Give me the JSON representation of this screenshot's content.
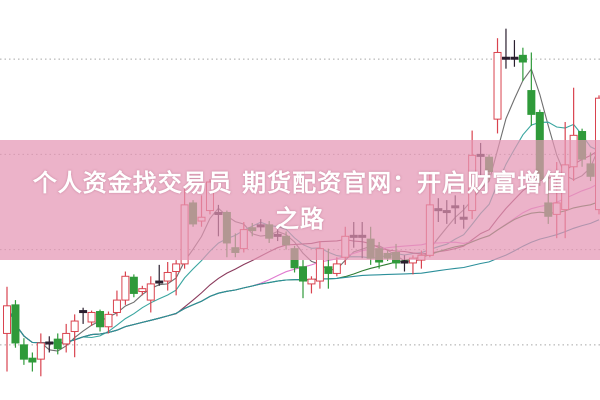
{
  "banner": {
    "title_line1": "个人资金找交易员 期货配资官网：开启财富增值",
    "title_line2": "之路",
    "color": "#e496b4"
  },
  "chart_data": {
    "type": "candlestick",
    "title": "",
    "xlabel": "",
    "ylabel": "",
    "grid": true,
    "ylim": [
      4,
      46
    ],
    "grid_values": [
      10,
      20,
      30,
      40
    ],
    "colors": {
      "up": "#d9434f",
      "down": "#2f9a3a",
      "doji": "#2a1f2f"
    },
    "moving_averages": [
      {
        "period": 5,
        "color": "#6f6f6f"
      },
      {
        "period": 10,
        "color": "#3aa6a0"
      },
      {
        "period": 20,
        "color": "#8a3a5c"
      },
      {
        "period": 30,
        "color": "#e07ad0"
      },
      {
        "period": 40,
        "color": "#2e7d32"
      },
      {
        "period": 60,
        "color": "#2b8f9a"
      }
    ],
    "candles": [
      [
        11.2,
        14.1,
        16.1,
        7.2
      ],
      [
        14.2,
        10.2,
        14.7,
        9.7
      ],
      [
        10.0,
        8.5,
        10.7,
        7.9
      ],
      [
        8.6,
        8.2,
        9.2,
        7.2
      ],
      [
        8.5,
        10.2,
        11.2,
        6.7
      ],
      [
        10.2,
        10.3,
        10.9,
        9.2
      ],
      [
        10.6,
        9.6,
        11.2,
        9.0
      ],
      [
        10.1,
        11.2,
        12.2,
        9.2
      ],
      [
        11.4,
        12.5,
        13.2,
        8.7
      ],
      [
        13.4,
        13.6,
        13.9,
        12.2
      ],
      [
        12.4,
        13.4,
        13.6,
        12.0
      ],
      [
        13.5,
        11.9,
        13.7,
        11.4
      ],
      [
        11.9,
        13.2,
        13.5,
        11.2
      ],
      [
        13.4,
        14.7,
        15.7,
        13.0
      ],
      [
        14.7,
        17.2,
        17.7,
        14.2
      ],
      [
        17.1,
        15.4,
        17.4,
        15.0
      ],
      [
        15.6,
        15.9,
        16.2,
        15.2
      ],
      [
        14.7,
        16.4,
        17.2,
        13.4
      ],
      [
        16.6,
        16.7,
        18.4,
        16.2
      ],
      [
        16.7,
        17.6,
        18.7,
        15.7
      ],
      [
        17.7,
        18.5,
        18.9,
        15.2
      ],
      [
        18.5,
        24.7,
        26.5,
        18.0
      ],
      [
        24.9,
        22.7,
        25.2,
        22.4
      ],
      [
        23.0,
        23.4,
        25.7,
        22.4
      ],
      [
        24.1,
        27.1,
        27.4,
        23.7
      ],
      [
        23.9,
        23.8,
        24.7,
        21.4
      ],
      [
        23.9,
        20.7,
        24.1,
        19.2
      ],
      [
        20.2,
        19.7,
        21.7,
        19.2
      ],
      [
        20.1,
        22.1,
        22.9,
        19.7
      ],
      [
        22.3,
        22.0,
        22.8,
        21.4
      ],
      [
        22.5,
        22.6,
        23.2,
        21.9
      ],
      [
        22.6,
        21.2,
        23.0,
        20.7
      ],
      [
        21.5,
        21.6,
        22.2,
        20.9
      ],
      [
        21.4,
        20.5,
        21.9,
        20.0
      ],
      [
        20.1,
        18.1,
        20.4,
        17.6
      ],
      [
        18.2,
        16.7,
        18.9,
        14.9
      ],
      [
        16.4,
        16.9,
        17.2,
        15.4
      ],
      [
        16.7,
        20.1,
        20.9,
        15.9
      ],
      [
        18.2,
        17.5,
        20.1,
        15.9
      ],
      [
        17.5,
        18.5,
        19.2,
        17.2
      ],
      [
        19.2,
        21.4,
        22.4,
        18.4
      ],
      [
        21.5,
        21.3,
        22.9,
        20.2
      ],
      [
        21.4,
        21.5,
        22.9,
        19.1
      ],
      [
        21.1,
        19.1,
        22.4,
        18.4
      ],
      [
        20.1,
        18.7,
        20.8,
        18.0
      ],
      [
        19.6,
        19.1,
        19.9,
        18.8
      ],
      [
        19.7,
        18.6,
        20.6,
        18.0
      ],
      [
        18.8,
        18.6,
        19.4,
        17.7
      ],
      [
        18.6,
        19.1,
        19.4,
        17.4
      ],
      [
        18.9,
        19.4,
        19.9,
        18.0
      ],
      [
        19.4,
        24.7,
        28.2,
        19.2
      ],
      [
        24.2,
        24.3,
        25.4,
        22.9
      ],
      [
        24.0,
        24.1,
        25.2,
        22.7
      ],
      [
        24.6,
        24.4,
        25.7,
        22.7
      ],
      [
        23.3,
        23.4,
        24.7,
        22.2
      ],
      [
        24.1,
        29.9,
        32.5,
        23.2
      ],
      [
        29.9,
        30.0,
        31.2,
        27.7
      ],
      [
        29.7,
        28.2,
        30.0,
        27.2
      ],
      [
        33.7,
        40.7,
        42.2,
        32.2
      ],
      [
        40.2,
        40.0,
        43.2,
        39.0
      ],
      [
        40.1,
        40.2,
        42.0,
        39.2
      ],
      [
        40.4,
        39.7,
        41.2,
        37.7
      ],
      [
        36.7,
        34.2,
        40.7,
        33.0
      ],
      [
        34.4,
        27.4,
        34.7,
        26.7
      ],
      [
        24.9,
        23.5,
        27.7,
        22.7
      ],
      [
        23.7,
        24.9,
        29.2,
        21.2
      ],
      [
        24.2,
        28.9,
        33.4,
        21.2
      ],
      [
        28.7,
        32.0,
        37.0,
        27.2
      ],
      [
        32.4,
        29.5,
        32.7,
        28.7
      ],
      [
        29.0,
        27.7,
        30.2,
        27.2
      ],
      [
        24.2,
        35.9,
        36.2,
        23.7
      ]
    ]
  }
}
